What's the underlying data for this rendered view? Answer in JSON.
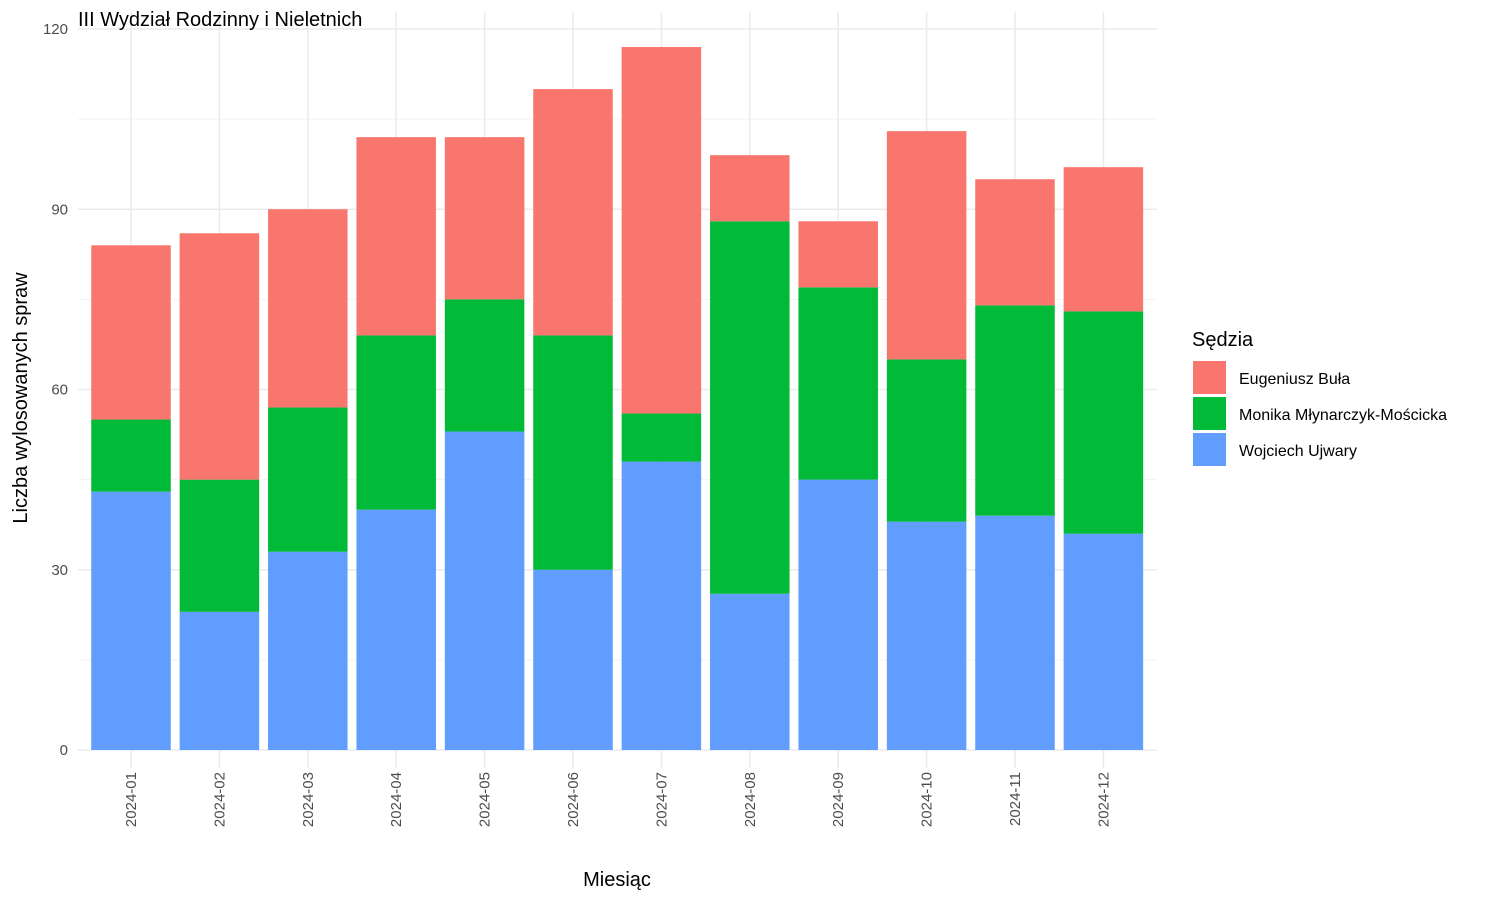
{
  "chart_data": {
    "type": "bar",
    "stacked": true,
    "title": "III Wydział Rodzinny i Nieletnich",
    "xlabel": "Miesiąc",
    "ylabel": "Liczba wylosowanych spraw",
    "ylim": [
      0,
      120
    ],
    "yticks": [
      0,
      30,
      60,
      90,
      120
    ],
    "grid": true,
    "categories": [
      "2024-01",
      "2024-02",
      "2024-03",
      "2024-04",
      "2024-05",
      "2024-06",
      "2024-07",
      "2024-08",
      "2024-09",
      "2024-10",
      "2024-11",
      "2024-12"
    ],
    "series": [
      {
        "name": "Wojciech Ujwary",
        "color": "#619CFF",
        "values": [
          43,
          23,
          33,
          40,
          53,
          30,
          48,
          26,
          45,
          38,
          39,
          36
        ]
      },
      {
        "name": "Monika Młynarczyk-Mościcka",
        "color": "#00BA38",
        "values": [
          12,
          22,
          24,
          29,
          22,
          39,
          8,
          62,
          32,
          27,
          35,
          37
        ]
      },
      {
        "name": "Eugeniusz Buła",
        "color": "#F8766D",
        "values": [
          29,
          41,
          33,
          33,
          27,
          41,
          61,
          11,
          11,
          38,
          21,
          24
        ]
      }
    ],
    "legend": {
      "title": "Sędzia",
      "placement": "right",
      "order": [
        "Eugeniusz Buła",
        "Monika Młynarczyk-Mościcka",
        "Wojciech Ujwary"
      ]
    }
  }
}
